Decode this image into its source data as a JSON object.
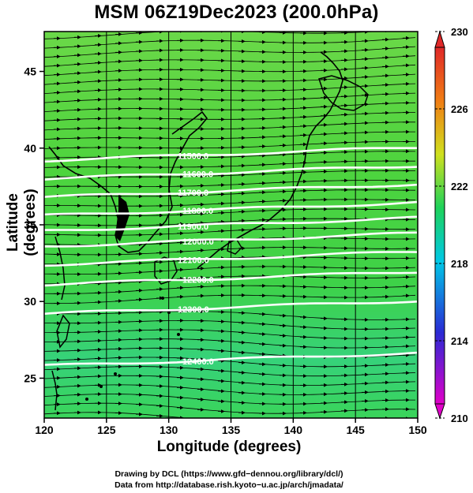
{
  "title": "MSM 06Z19Dec2023 (200.0hPa)",
  "axes": {
    "xlabel": "Longitude (degrees)",
    "ylabel": "Latitude  (degrees)",
    "xticks": [
      "120",
      "125",
      "130",
      "135",
      "140",
      "145",
      "150"
    ],
    "yticks": [
      "25",
      "30",
      "35",
      "40",
      "45"
    ],
    "xrange": [
      120,
      150
    ],
    "yrange": [
      22.4,
      47.6
    ]
  },
  "colorbar": {
    "labels": [
      "230",
      "226",
      "222",
      "218",
      "214",
      "210"
    ],
    "range": [
      210,
      230
    ],
    "colors": [
      "#e000c8",
      "#2a2ad4",
      "#00c8e6",
      "#1ed25a",
      "#d0e01e",
      "#f07d14",
      "#e02828"
    ]
  },
  "contours": [
    {
      "label": "11500.0",
      "lat": 39.2
    },
    {
      "label": "11600.0",
      "lat": 38.0
    },
    {
      "label": "11700.0",
      "lat": 36.8
    },
    {
      "label": "11800.0",
      "lat": 35.6
    },
    {
      "label": "11900.0",
      "lat": 34.6
    },
    {
      "label": "12000.0",
      "lat": 33.6
    },
    {
      "label": "12100.0",
      "lat": 32.4
    },
    {
      "label": "12200.0",
      "lat": 31.1
    },
    {
      "label": "12300.0",
      "lat": 29.2
    },
    {
      "label": "12400.0",
      "lat": 25.8
    }
  ],
  "credits": {
    "line1": "Drawing by DCL (https://www.gfd−dennou.org/library/dcl/)",
    "line2": "Data from http://database.rish.kyoto−u.ac.jp/arch/jmadata/"
  }
}
